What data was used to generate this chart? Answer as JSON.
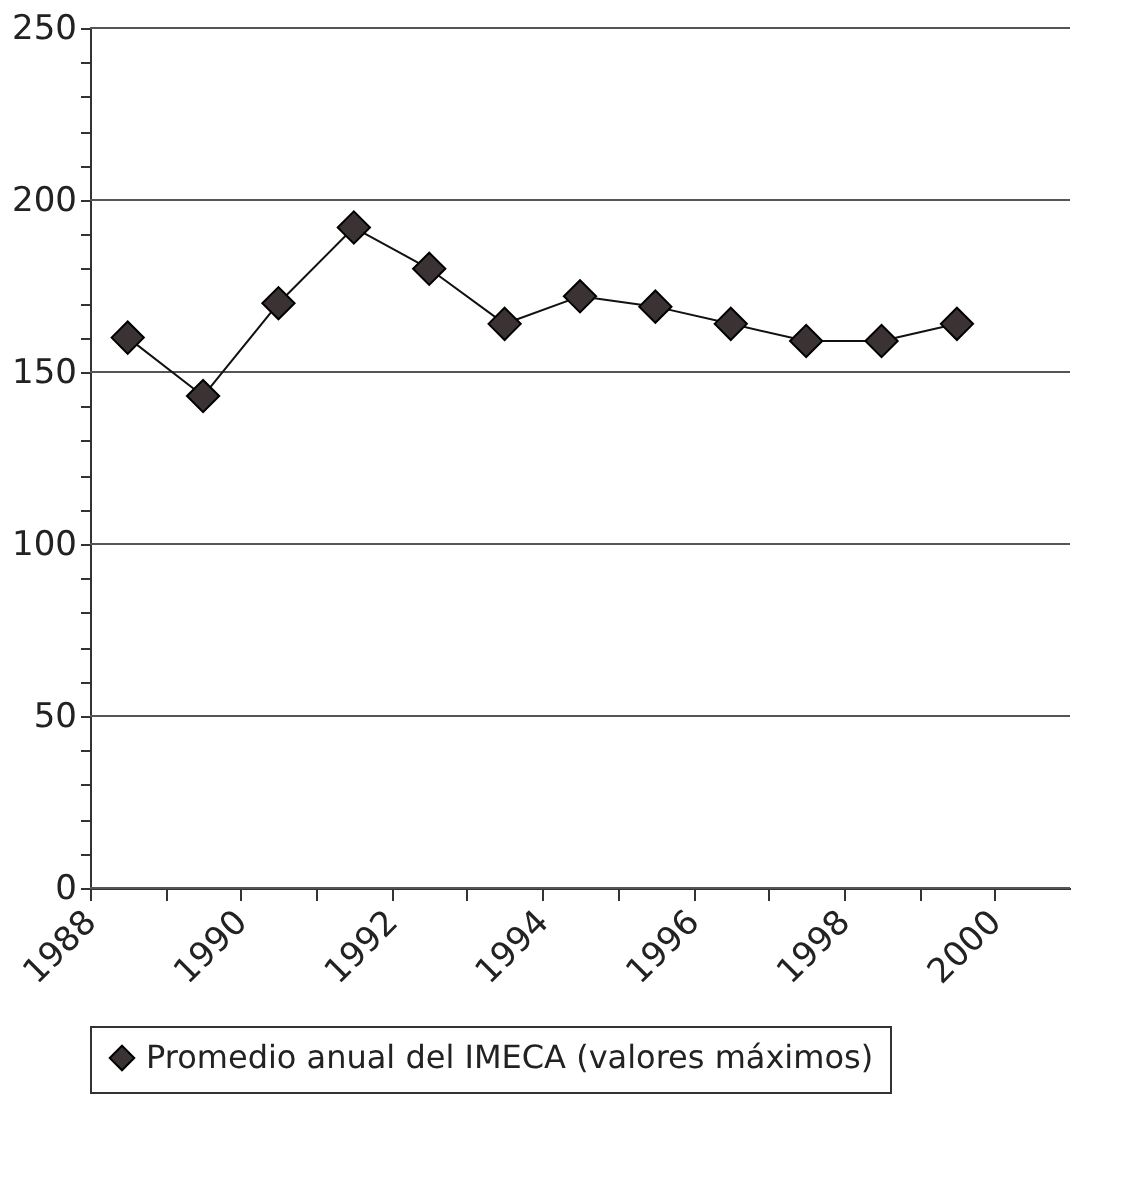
{
  "chart_data": {
    "type": "line",
    "x": [
      1988.5,
      1989.5,
      1990.5,
      1991.5,
      1992.5,
      1993.5,
      1994.5,
      1995.5,
      1996.5,
      1997.5,
      1998.5,
      1999.5
    ],
    "series": [
      {
        "name": "Promedio anual del IMECA (valores máximos)",
        "color": "#3b3333",
        "values": [
          160,
          143,
          170,
          192,
          180,
          164,
          172,
          169,
          164,
          159,
          159,
          164
        ]
      }
    ],
    "xlim": [
      1988,
      2001
    ],
    "xticks": [
      1988,
      {
        "value": 1989,
        "label": null
      },
      1990,
      {
        "value": 1991,
        "label": null
      },
      1992,
      {
        "value": 1993,
        "label": null
      },
      1994,
      {
        "value": 1995,
        "label": null
      },
      1996,
      {
        "value": 1997,
        "label": null
      },
      1998,
      {
        "value": 1999,
        "label": null
      },
      2000
    ],
    "ylim": [
      0,
      250
    ],
    "yticks": [
      0,
      {
        "value": 10,
        "label": null
      },
      {
        "value": 20,
        "label": null
      },
      {
        "value": 30,
        "label": null
      },
      {
        "value": 40,
        "label": null
      },
      50,
      {
        "value": 60,
        "label": null
      },
      {
        "value": 70,
        "label": null
      },
      {
        "value": 80,
        "label": null
      },
      {
        "value": 90,
        "label": null
      },
      100,
      {
        "value": 110,
        "label": null
      },
      {
        "value": 120,
        "label": null
      },
      {
        "value": 130,
        "label": null
      },
      {
        "value": 140,
        "label": null
      },
      150,
      {
        "value": 160,
        "label": null
      },
      {
        "value": 170,
        "label": null
      },
      {
        "value": 180,
        "label": null
      },
      {
        "value": 190,
        "label": null
      },
      200,
      {
        "value": 210,
        "label": null
      },
      {
        "value": 220,
        "label": null
      },
      {
        "value": 230,
        "label": null
      },
      {
        "value": 240,
        "label": null
      },
      250
    ],
    "grid": "y",
    "legend": "bottom",
    "marker": "diamond",
    "line_style": "solid"
  }
}
